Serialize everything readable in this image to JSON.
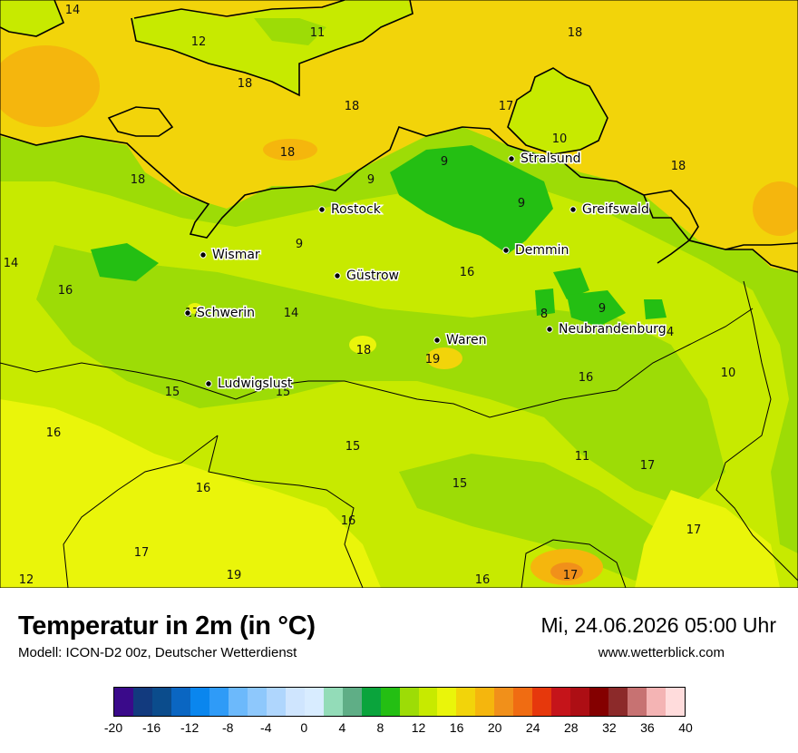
{
  "title": "Temperatur in 2m (in °C)",
  "model": "Modell: ICON-D2 00z, Deutscher Wetterdienst",
  "datetime": "Mi, 24.06.2026 05:00 Uhr",
  "website": "www.wetterblick.com",
  "legend": {
    "colors": [
      "#3a0a8a",
      "#123a7e",
      "#0b4c8c",
      "#0a66c2",
      "#0a86ee",
      "#2f9bf7",
      "#6cb9fb",
      "#8ec8fc",
      "#afd6fd",
      "#cfe5fe",
      "#d8ecff",
      "#93dcb8",
      "#5fae86",
      "#0aa43c",
      "#24bf13",
      "#9ddc06",
      "#c7ea00",
      "#eaf50a",
      "#f2d40a",
      "#f5b60d",
      "#f1901a",
      "#f06c12",
      "#e6380c",
      "#c5141a",
      "#ad0e14",
      "#840000",
      "#8c2a2a",
      "#c77272",
      "#f4b4b4",
      "#ffdcdc"
    ],
    "ticks": [
      "-20",
      "-16",
      "-12",
      "-8",
      "-4",
      "0",
      "4",
      "8",
      "12",
      "16",
      "20",
      "24",
      "28",
      "32",
      "36",
      "40"
    ]
  },
  "cities": [
    {
      "name": "Stralsund"
    },
    {
      "name": "Greifswald"
    },
    {
      "name": "Rostock"
    },
    {
      "name": "Demmin"
    },
    {
      "name": "Wismar"
    },
    {
      "name": "Güstrow"
    },
    {
      "name": "Schwerin"
    },
    {
      "name": "Neubrandenburg"
    },
    {
      "name": "Waren"
    },
    {
      "name": "Ludwigslust"
    }
  ],
  "temperature_labels": [
    "14",
    "12",
    "11",
    "18",
    "18",
    "18",
    "18",
    "17",
    "10",
    "18",
    "18",
    "9",
    "9",
    "9",
    "9",
    "14",
    "16",
    "16",
    "17",
    "14",
    "8",
    "9",
    "18",
    "19",
    "14",
    "15",
    "15",
    "16",
    "10",
    "16",
    "15",
    "11",
    "17",
    "15",
    "16",
    "16",
    "17",
    "17",
    "12",
    "19",
    "16",
    "17"
  ]
}
